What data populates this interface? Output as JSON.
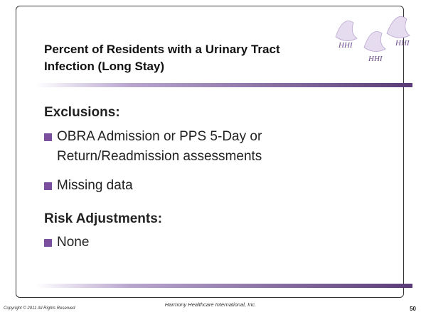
{
  "title": "Percent of Residents with a Urinary Tract Infection (Long Stay)",
  "logo_text": "HHI",
  "sections": [
    {
      "heading": "Exclusions:",
      "bullets": [
        "OBRA Admission or PPS 5-Day or Return/Readmission assessments",
        "Missing data"
      ]
    },
    {
      "heading": "Risk Adjustments:",
      "bullets": [
        "None"
      ]
    }
  ],
  "footer": {
    "copyright": "Copyright © 2011 All Rights Reserved",
    "company": "Harmony Healthcare International, Inc.",
    "page_number": "50"
  }
}
